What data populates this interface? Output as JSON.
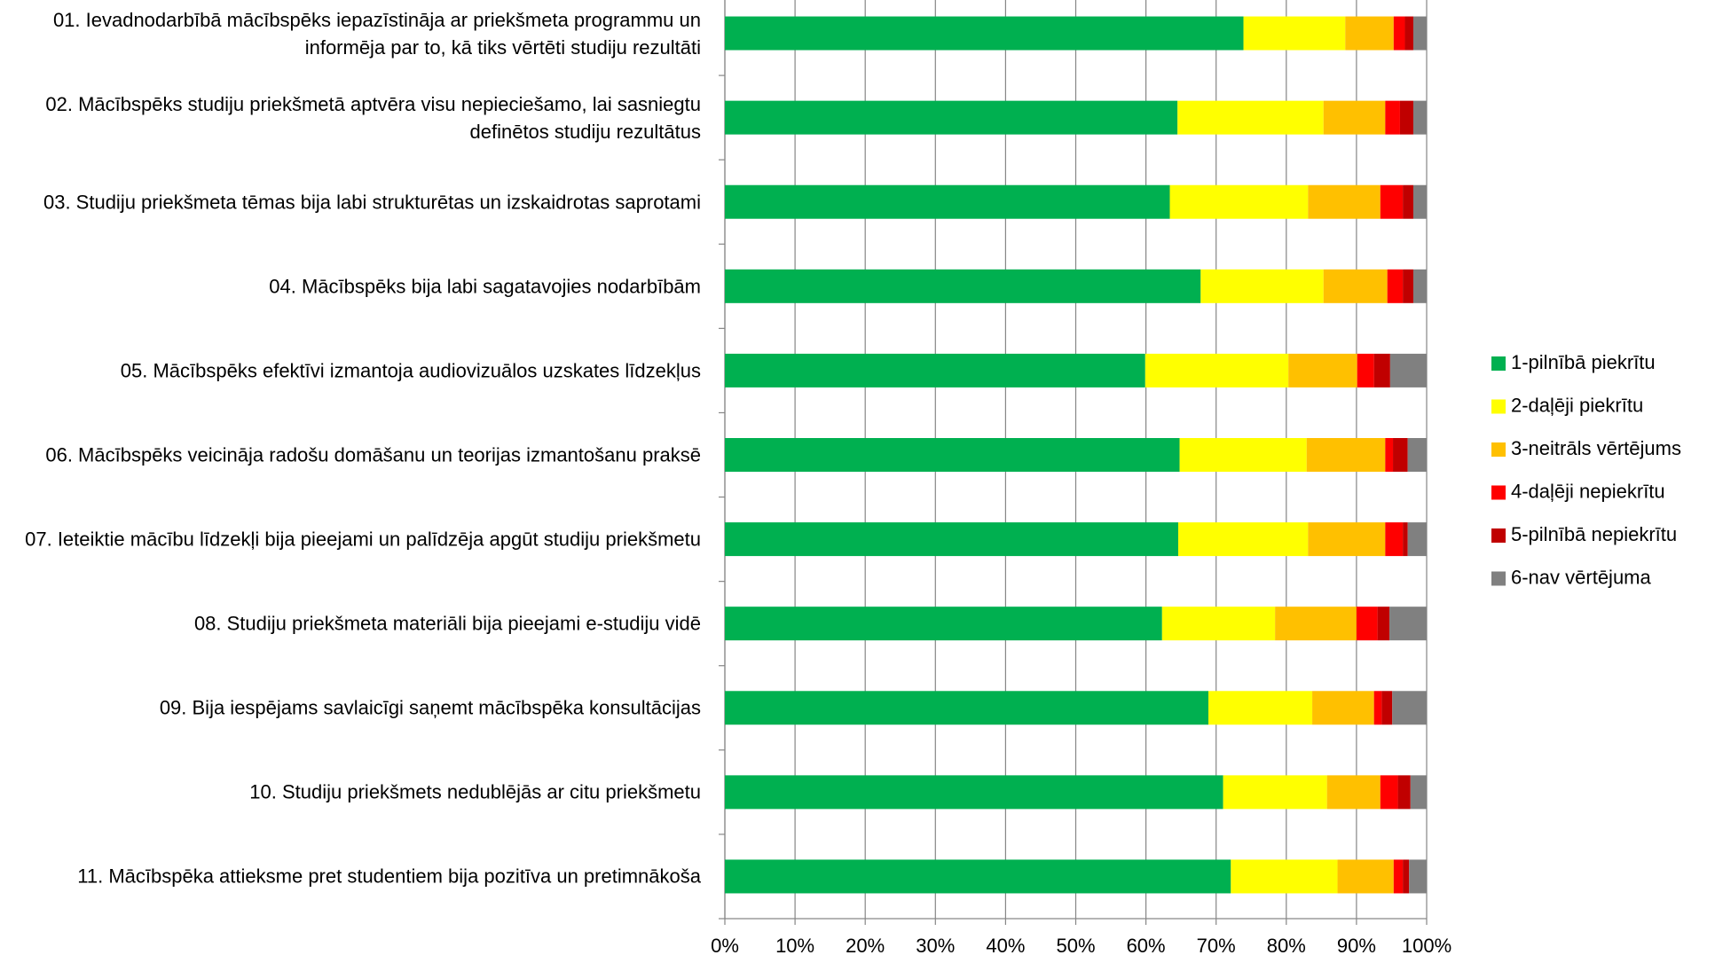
{
  "chart_data": {
    "type": "stacked-bar-horizontal",
    "categories": [
      "01. Ievadnodarbībā mācībspēks iepazīstināja ar priekšmeta programmu un informēja par to, kā tiks vērtēti studiju rezultāti",
      "02. Mācībspēks studiju priekšmetā aptvēra visu nepieciešamo, lai sasniegtu definētos studiju rezultātus",
      "03. Studiju priekšmeta tēmas bija labi strukturētas un izskaidrotas saprotami",
      "04. Mācībspēks bija labi sagatavojies nodarbībām",
      "05. Mācībspēks efektīvi izmantoja audiovizuālos uzskates līdzekļus",
      "06. Mācībspēks veicināja radošu domāšanu un teorijas izmantošanu praksē",
      "07. Ieteiktie mācību līdzekļi bija pieejami un palīdzēja apgūt studiju priekšmetu",
      "08. Studiju priekšmeta materiāli bija pieejami e-studiju vidē",
      "09. Bija iespējams savlaicīgi saņemt mācībspēka konsultācijas",
      "10. Studiju priekšmets nedublējās ar citu priekšmetu",
      "11. Mācībspēka attieksme pret studentiem bija pozitīva un pretimnākoša"
    ],
    "series": [
      {
        "name": "1-pilnībā piekrītu",
        "color": "#00b050",
        "values": [
          73.9,
          64.5,
          63.4,
          67.8,
          59.9,
          64.8,
          64.6,
          62.3,
          68.9,
          71.0,
          72.1
        ]
      },
      {
        "name": "2-daļēji piekrītu",
        "color": "#ffff00",
        "values": [
          14.5,
          20.8,
          19.7,
          17.5,
          20.4,
          18.1,
          18.5,
          16.1,
          14.8,
          14.8,
          15.2
        ]
      },
      {
        "name": "3-neitrāls vērtējums",
        "color": "#ffc000",
        "values": [
          6.9,
          8.8,
          10.3,
          9.1,
          9.8,
          11.2,
          11.0,
          11.6,
          8.8,
          7.6,
          8.0
        ]
      },
      {
        "name": "4-daļēji nepiekrītu",
        "color": "#ff0000",
        "values": [
          1.6,
          2.1,
          3.2,
          2.2,
          2.4,
          1.1,
          2.5,
          3.0,
          1.1,
          2.5,
          1.3
        ]
      },
      {
        "name": "5-pilnībā nepiekrītu",
        "color": "#c00000",
        "values": [
          1.2,
          1.9,
          1.5,
          1.5,
          2.3,
          2.1,
          0.7,
          1.7,
          1.5,
          1.8,
          0.9
        ]
      },
      {
        "name": "6-nav vērtējuma",
        "color": "#808080",
        "values": [
          1.9,
          1.9,
          1.9,
          1.9,
          5.2,
          2.7,
          2.7,
          5.3,
          4.9,
          2.3,
          2.5
        ]
      }
    ],
    "xlim": [
      0,
      100
    ],
    "xticks": [
      {
        "value": 0,
        "label": "0%"
      },
      {
        "value": 10,
        "label": "10%"
      },
      {
        "value": 20,
        "label": "20%"
      },
      {
        "value": 30,
        "label": "30%"
      },
      {
        "value": 40,
        "label": "40%"
      },
      {
        "value": 50,
        "label": "50%"
      },
      {
        "value": 60,
        "label": "60%"
      },
      {
        "value": 70,
        "label": "70%"
      },
      {
        "value": 80,
        "label": "80%"
      },
      {
        "value": 90,
        "label": "90%"
      },
      {
        "value": 100,
        "label": "100%"
      }
    ],
    "grid": true,
    "legend": "right"
  }
}
